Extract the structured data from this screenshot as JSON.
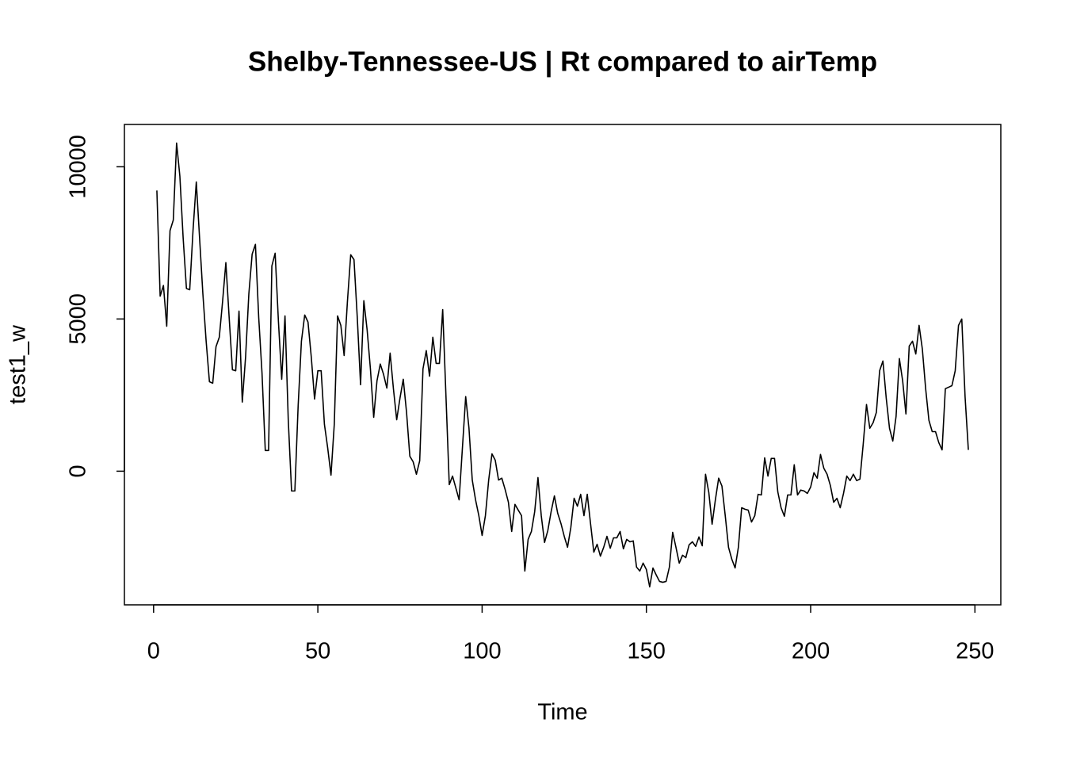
{
  "chart_data": {
    "type": "line",
    "title": "Shelby-Tennessee-US | Rt compared to airTemp",
    "x_label": "Time",
    "y_label": "test1_w",
    "x": [
      1,
      2,
      3,
      4,
      5,
      6,
      7,
      8,
      9,
      10,
      11,
      12,
      13,
      14,
      15,
      16,
      17,
      18,
      19,
      20,
      21,
      22,
      23,
      24,
      25,
      26,
      27,
      28,
      29,
      30,
      31,
      32,
      33,
      34,
      35,
      36,
      37,
      38,
      39,
      40,
      41,
      42,
      43,
      44,
      45,
      46,
      47,
      48,
      49,
      50,
      51,
      52,
      53,
      54,
      55,
      56,
      57,
      58,
      59,
      60,
      61,
      62,
      63,
      64,
      65,
      66,
      67,
      68,
      69,
      70,
      71,
      72,
      73,
      74,
      75,
      76,
      77,
      78,
      79,
      80,
      81,
      82,
      83,
      84,
      85,
      86,
      87,
      88,
      89,
      90,
      91,
      92,
      93,
      94,
      95,
      96,
      97,
      98,
      99,
      100,
      101,
      102,
      103,
      104,
      105,
      106,
      107,
      108,
      109,
      110,
      111,
      112,
      113,
      114,
      115,
      116,
      117,
      118,
      119,
      120,
      121,
      122,
      123,
      124,
      125,
      126,
      127,
      128,
      129,
      130,
      131,
      132,
      133,
      134,
      135,
      136,
      137,
      138,
      139,
      140,
      141,
      142,
      143,
      144,
      145,
      146,
      147,
      148,
      149,
      150,
      151,
      152,
      153,
      154,
      155,
      156,
      157,
      158,
      159,
      160,
      161,
      162,
      163,
      164,
      165,
      166,
      167,
      168,
      169,
      170,
      171,
      172,
      173,
      174,
      175,
      176,
      177,
      178,
      179,
      180,
      181,
      182,
      183,
      184,
      185,
      186,
      187,
      188,
      189,
      190,
      191,
      192,
      193,
      194,
      195,
      196,
      197,
      198,
      199,
      200,
      201,
      202,
      203,
      204,
      205,
      206,
      207,
      208,
      209,
      210,
      211,
      212,
      213,
      214,
      215,
      216,
      217,
      218,
      219,
      220,
      221,
      222,
      223,
      224,
      225,
      226,
      227,
      228,
      229,
      230,
      231,
      232,
      233,
      234,
      235,
      236,
      237,
      238,
      239,
      240,
      241,
      242,
      243,
      244,
      245,
      246,
      247,
      248
    ],
    "values": [
      9220,
      5750,
      6100,
      4760,
      7900,
      8250,
      10780,
      9690,
      7660,
      6000,
      5960,
      7900,
      9500,
      7660,
      5830,
      4270,
      2940,
      2890,
      4090,
      4400,
      5570,
      6850,
      5050,
      3330,
      3300,
      5260,
      2270,
      3750,
      5830,
      7130,
      7450,
      5050,
      3230,
      680,
      680,
      6740,
      7160,
      4920,
      3020,
      5100,
      1670,
      -650,
      -650,
      2140,
      4270,
      5130,
      4900,
      3750,
      2370,
      3300,
      3300,
      1540,
      760,
      -130,
      1540,
      5100,
      4790,
      3800,
      5570,
      7110,
      6950,
      5050,
      2840,
      5600,
      4640,
      3360,
      1770,
      2970,
      3520,
      3180,
      2730,
      3880,
      2710,
      1690,
      2400,
      3020,
      1930,
      490,
      310,
      -100,
      340,
      3360,
      3960,
      3120,
      4400,
      3540,
      3540,
      5310,
      2450,
      -440,
      -160,
      -550,
      -940,
      760,
      2450,
      1410,
      -290,
      -940,
      -1460,
      -2110,
      -1460,
      -290,
      570,
      360,
      -290,
      -230,
      -600,
      -1020,
      -1980,
      -1090,
      -1280,
      -1460,
      -3280,
      -2240,
      -1980,
      -1330,
      -210,
      -1460,
      -2340,
      -1950,
      -1330,
      -810,
      -1380,
      -1720,
      -2140,
      -2500,
      -1850,
      -890,
      -1150,
      -760,
      -1460,
      -760,
      -1720,
      -2660,
      -2400,
      -2790,
      -2500,
      -2140,
      -2530,
      -2190,
      -2190,
      -1980,
      -2550,
      -2240,
      -2320,
      -2290,
      -3150,
      -3280,
      -3020,
      -3230,
      -3800,
      -3180,
      -3410,
      -3620,
      -3650,
      -3620,
      -3150,
      -2010,
      -2500,
      -3020,
      -2760,
      -2840,
      -2420,
      -2320,
      -2470,
      -2160,
      -2450,
      -100,
      -700,
      -1740,
      -940,
      -230,
      -490,
      -1460,
      -2500,
      -2890,
      -3180,
      -2500,
      -1200,
      -1250,
      -1280,
      -1670,
      -1460,
      -760,
      -780,
      440,
      -160,
      420,
      420,
      -680,
      -1200,
      -1480,
      -780,
      -780,
      210,
      -780,
      -620,
      -650,
      -730,
      -520,
      -50,
      -230,
      550,
      100,
      -100,
      -470,
      -1020,
      -890,
      -1200,
      -730,
      -160,
      -310,
      -100,
      -310,
      -260,
      890,
      2190,
      1410,
      1590,
      1930,
      3300,
      3620,
      2400,
      1410,
      990,
      1800,
      3700,
      2970,
      1880,
      4110,
      4270,
      3850,
      4790,
      4010,
      2710,
      1670,
      1300,
      1300,
      940,
      700,
      2710,
      2760,
      2810,
      3300,
      4790,
      5000,
      2450,
      700
    ],
    "color": "#000000",
    "xlim": [
      -8.88,
      257.88
    ],
    "ylim": [
      -4390,
      11390
    ],
    "xticks": [
      0,
      50,
      100,
      150,
      200,
      250
    ],
    "yticks": [
      0,
      5000,
      10000
    ]
  }
}
